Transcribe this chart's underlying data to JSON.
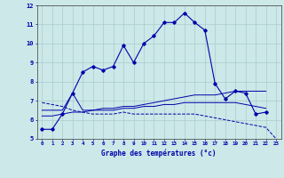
{
  "xlabel": "Graphe des températures (°c)",
  "bg_color": "#cce8e8",
  "grid_color": "#aacccc",
  "line_color": "#0000aa",
  "xmin": 0,
  "xmax": 23,
  "ymin": 5,
  "ymax": 12,
  "hours": [
    0,
    1,
    2,
    3,
    4,
    5,
    6,
    7,
    8,
    9,
    10,
    11,
    12,
    13,
    14,
    15,
    16,
    17,
    18,
    19,
    20,
    21,
    22,
    23
  ],
  "temp_main": [
    5.5,
    5.5,
    6.3,
    7.4,
    8.5,
    8.8,
    8.6,
    8.8,
    9.9,
    9.0,
    10.0,
    10.4,
    11.1,
    11.1,
    11.6,
    11.1,
    10.7,
    7.9,
    7.1,
    7.5,
    7.4,
    6.3,
    6.4,
    null
  ],
  "temp_smooth1": [
    6.5,
    6.5,
    6.5,
    7.4,
    6.5,
    6.5,
    6.6,
    6.6,
    6.7,
    6.7,
    6.8,
    6.9,
    7.0,
    7.1,
    7.2,
    7.3,
    7.3,
    7.3,
    7.4,
    7.5,
    7.5,
    7.5,
    7.5,
    null
  ],
  "temp_smooth2": [
    6.2,
    6.2,
    6.3,
    6.4,
    6.4,
    6.5,
    6.5,
    6.5,
    6.6,
    6.6,
    6.7,
    6.7,
    6.8,
    6.8,
    6.9,
    6.9,
    6.9,
    6.9,
    6.9,
    6.9,
    6.8,
    6.7,
    6.6,
    null
  ],
  "temp_trend": [
    6.9,
    6.8,
    6.7,
    6.5,
    6.4,
    6.3,
    6.3,
    6.3,
    6.4,
    6.3,
    6.3,
    6.3,
    6.3,
    6.3,
    6.3,
    6.3,
    6.2,
    6.1,
    6.0,
    5.9,
    5.8,
    5.7,
    5.6,
    5.0
  ]
}
